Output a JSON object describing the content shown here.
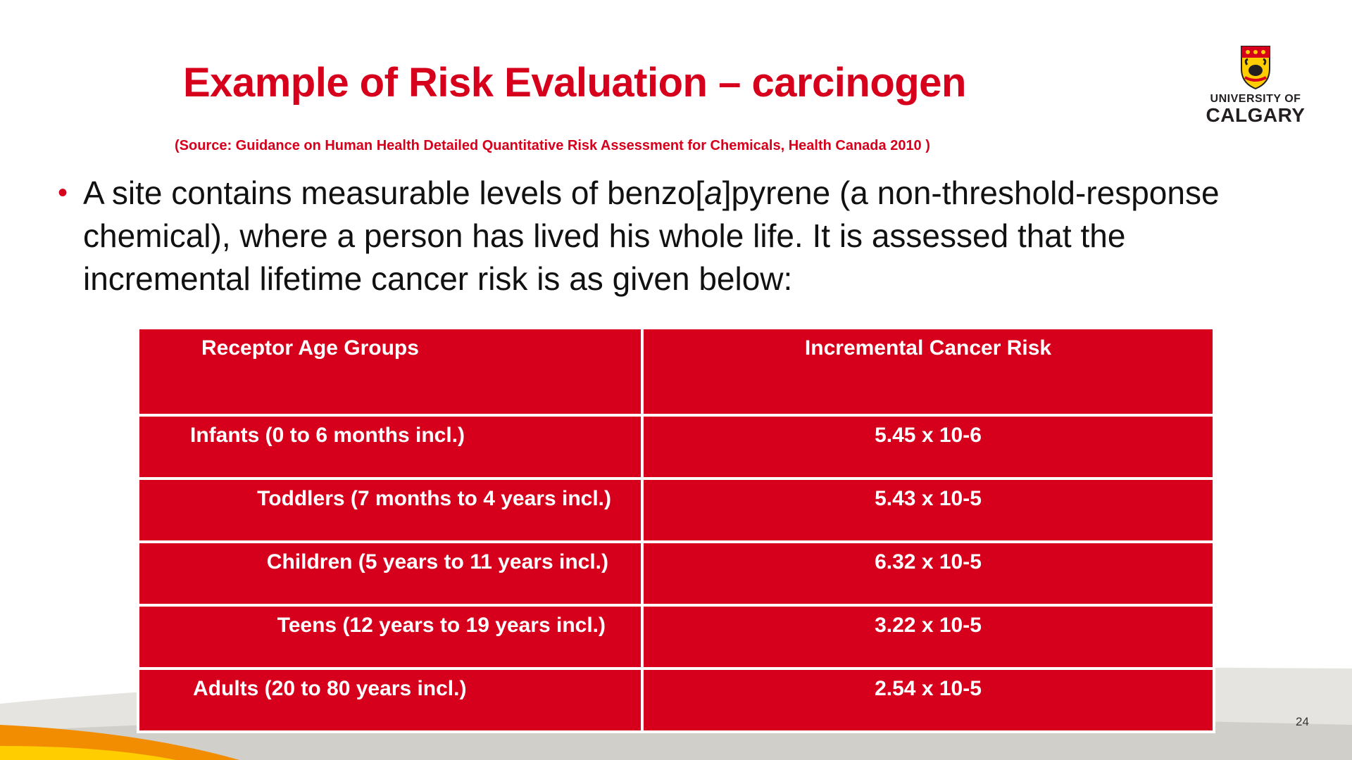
{
  "slide": {
    "title": "Example of Risk Evaluation – carcinogen",
    "source": "(Source: Guidance on Human Health Detailed Quantitative Risk Assessment for Chemicals, Health Canada 2010 )",
    "page_number": "24"
  },
  "logo": {
    "line1": "UNIVERSITY OF",
    "line2": "CALGARY",
    "icon": "university-crest"
  },
  "bullet": {
    "marker": "•",
    "text_before_italic": "A site contains measurable levels of benzo[",
    "italic": "a",
    "text_after_italic": "]pyrene (a non-threshold-response chemical), where a person has lived his whole life. It is assessed that the incremental lifetime cancer risk is as given below:"
  },
  "table": {
    "headers": [
      "Receptor Age Groups",
      "Incremental Cancer Risk"
    ],
    "rows": [
      {
        "group": "Infants (0 to 6 months incl.)",
        "risk": "5.45 x 10-6"
      },
      {
        "group": "Toddlers (7 months to 4 years incl.)",
        "risk": "5.43 x 10-5"
      },
      {
        "group": "Children (5 years to 11 years incl.)",
        "risk": "6.32 x 10-5"
      },
      {
        "group": "Teens (12 years to 19 years incl.)",
        "risk": "3.22 x 10-5"
      },
      {
        "group": "Adults (20 to 80 years incl.)",
        "risk": "2.54 x 10-5"
      }
    ]
  },
  "colors": {
    "accent_red": "#d6001c",
    "accent_gold": "#ffcd00",
    "accent_orange": "#f28c00",
    "footer_gray": "#d9d9d6"
  }
}
